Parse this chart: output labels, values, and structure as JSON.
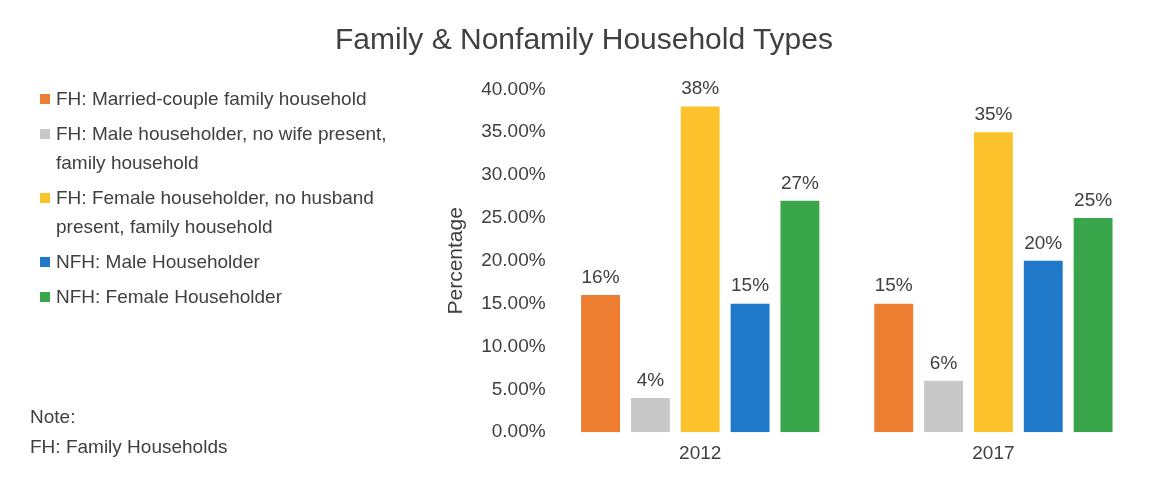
{
  "chart_data": {
    "type": "bar",
    "title": "Family & Nonfamily Household Types",
    "ylabel": "Percentage",
    "categories": [
      "2012",
      "2017"
    ],
    "series": [
      {
        "name": "FH: Married-couple family household",
        "color": "#ed7d31",
        "values": [
          16,
          15
        ],
        "value_labels": [
          "16%",
          "15%"
        ]
      },
      {
        "name": "FH: Male householder, no wife present, family household",
        "color": "#c8c8c8",
        "values": [
          4,
          6
        ],
        "value_labels": [
          "4%",
          "6%"
        ]
      },
      {
        "name": "FH: Female householder, no husband present, family household",
        "color": "#fcc22c",
        "values": [
          38,
          35
        ],
        "value_labels": [
          "38%",
          "35%"
        ]
      },
      {
        "name": "NFH: Male Householder",
        "color": "#1f78c8",
        "values": [
          15,
          20
        ],
        "value_labels": [
          "15%",
          "20%"
        ]
      },
      {
        "name": "NFH: Female Householder",
        "color": "#3aa64c",
        "values": [
          27,
          25
        ],
        "value_labels": [
          "27%",
          "25%"
        ]
      }
    ],
    "ylim": [
      0,
      40
    ],
    "yticks": [
      {
        "value": 0,
        "label": "0.00%"
      },
      {
        "value": 5,
        "label": "5.00%"
      },
      {
        "value": 10,
        "label": "10.00%"
      },
      {
        "value": 15,
        "label": "15.00%"
      },
      {
        "value": 20,
        "label": "20.00%"
      },
      {
        "value": 25,
        "label": "25.00%"
      },
      {
        "value": 30,
        "label": "30.00%"
      },
      {
        "value": 35,
        "label": "35.00%"
      },
      {
        "value": 40,
        "label": "40.00%"
      }
    ],
    "grid": false,
    "legend": "left",
    "annotations": [
      "Note:",
      "FH: Family Households"
    ]
  }
}
